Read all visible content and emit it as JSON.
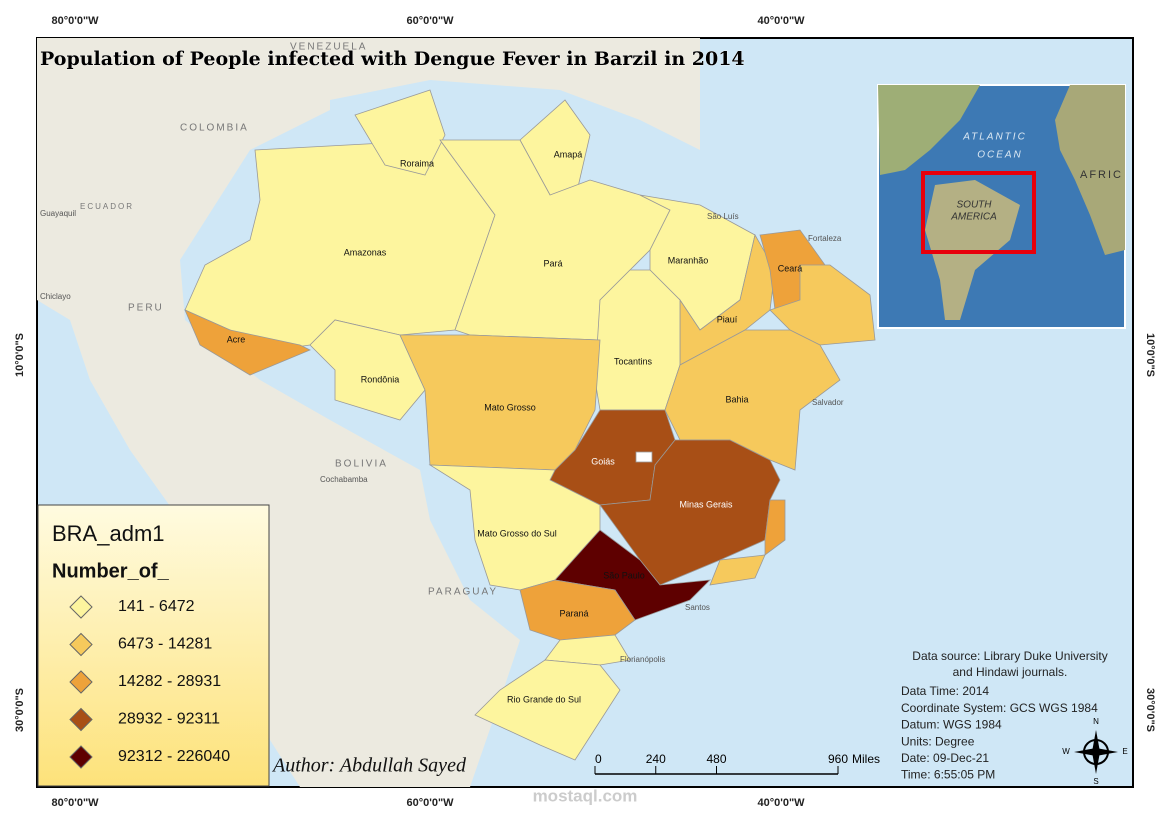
{
  "title": "Population of People infected with Dengue Fever in Barzil in 2014",
  "graticule": {
    "top": [
      "80°0'0\"W",
      "60°0'0\"W",
      "40°0'0\"W"
    ],
    "bottom": [
      "80°0'0\"W",
      "60°0'0\"W",
      "40°0'0\"W"
    ],
    "left": [
      "10°0'0\"S",
      "30°0'0\"S"
    ],
    "right": [
      "10°0'0\"S",
      "30°0'0\"S"
    ]
  },
  "states": [
    {
      "name": "Amazonas",
      "class": 0
    },
    {
      "name": "Roraima",
      "class": 0
    },
    {
      "name": "Amapá",
      "class": 0
    },
    {
      "name": "Pará",
      "class": 0
    },
    {
      "name": "Maranhão",
      "class": 0
    },
    {
      "name": "Piauí",
      "class": 1
    },
    {
      "name": "Ceará",
      "class": 2
    },
    {
      "class": 1
    },
    {
      "name": "Tocantins",
      "class": 0
    },
    {
      "name": "Bahia",
      "class": 1
    },
    {
      "name": "Acre",
      "class": 2
    },
    {
      "name": "Rondônia",
      "class": 0
    },
    {
      "name": "Mato Grosso",
      "class": 1
    },
    {
      "name": "Goiás",
      "class": 3
    },
    {
      "name": "Minas Gerais",
      "class": 3
    },
    {
      "class": 2
    },
    {
      "class": 1
    },
    {
      "name": "Mato Grosso do Sul",
      "class": 0
    },
    {
      "name": "São Paulo",
      "class": 4
    },
    {
      "name": "Paraná",
      "class": 2
    },
    {
      "class": 0
    },
    {
      "name": "Rio Grande do Sul",
      "class": 0
    }
  ],
  "legend": {
    "title": "BRA_adm1",
    "field": "Number_of_",
    "classes": [
      {
        "label": "141 - 6472",
        "color": "#fdf59e"
      },
      {
        "label": "6473 - 14281",
        "color": "#f6c95c"
      },
      {
        "label": "14282 - 28931",
        "color": "#eea23a"
      },
      {
        "label": "28932 - 92311",
        "color": "#a84f16"
      },
      {
        "label": "92312 - 226040",
        "color": "#5e0000"
      }
    ]
  },
  "scale_bar": {
    "ticks": [
      0,
      240,
      480,
      960
    ],
    "unit": "Miles"
  },
  "author": "Author: Abdullah Sayed",
  "metadata": [
    "Data source: Library Duke University",
    "and Hindawi journals.",
    "Data Time: 2014",
    "Coordinate System: GCS WGS 1984",
    "Datum: WGS 1984",
    "Units: Degree",
    "Date: 09-Dec-21",
    "Time: 6:55:05 PM"
  ],
  "north_arrow": {
    "n": "N",
    "e": "E",
    "s": "S",
    "w": "W"
  },
  "inset": {
    "labels": [
      "ATLANTIC",
      "OCEAN",
      "SOUTH",
      "AMERICA",
      "AFRIC"
    ]
  },
  "basemap": {
    "countries": [
      "VENEZUELA",
      "COLOMBIA",
      "PERU",
      "BOLIVIA",
      "PARAGUAY",
      "ECUADOR"
    ],
    "cities": [
      "São Luís",
      "Fortaleza",
      "Salvador",
      "Santos",
      "Florianópolis",
      "Chiclayo",
      "Guayaquil",
      "Cochabamba"
    ]
  },
  "watermark": "mostaql.com"
}
